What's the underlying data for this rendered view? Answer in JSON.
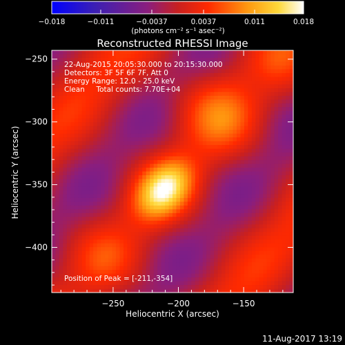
{
  "chart_data": {
    "type": "heatmap",
    "title": "Reconstructed RHESSI Image",
    "xlabel": "Heliocentric X (arcsec)",
    "ylabel": "Heliocentric Y (arcsec)",
    "xlim": [
      -297,
      -112
    ],
    "ylim": [
      -436,
      -243
    ],
    "x_ticks": [
      -250,
      -200,
      -150
    ],
    "x_tick_labels": [
      "−250",
      "−200",
      "−150"
    ],
    "y_ticks": [
      -250,
      -300,
      -350,
      -400
    ],
    "y_tick_labels": [
      "−250",
      "−300",
      "−350",
      "−400"
    ],
    "colorbar": {
      "min": -0.018,
      "max": 0.018,
      "ticks": [
        -0.018,
        -0.011,
        -0.0037,
        0.0037,
        0.011,
        0.018
      ],
      "tick_labels": [
        "−0.018",
        "−0.011",
        "−0.0037",
        "0.0037",
        "0.011",
        "0.018"
      ],
      "units": "(photons cm⁻² s⁻¹ asec⁻²)",
      "colormap": "RHESSI (blue-purple-red-orange-yellow-white)"
    },
    "peak": {
      "x": -211,
      "y": -354,
      "value": 0.018
    },
    "annotations": [
      "22-Aug-2015 20:05:30.000 to 20:15:30.000",
      "Detectors: 3F 5F 6F 7F, Att 0",
      "Energy Range: 12.0 - 25.0 keV",
      "Clean     Total counts: 7.70E+04"
    ],
    "peak_label": "Position of Peak = [-211,-354]"
  },
  "footer_timestamp": "11-Aug-2017 13:19"
}
